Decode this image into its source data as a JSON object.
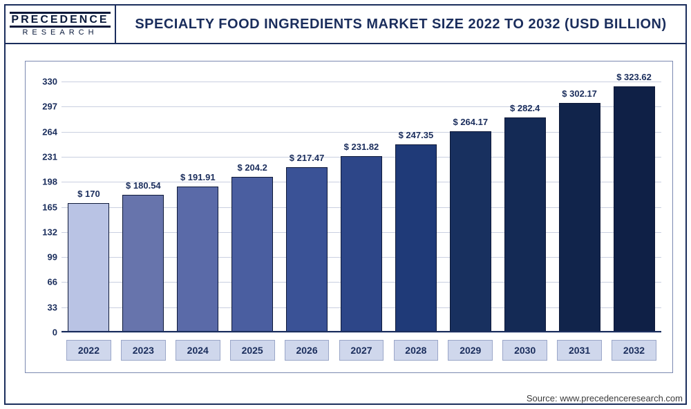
{
  "logo": {
    "line1": "PRECEDENCE",
    "line2": "RESEARCH"
  },
  "title": "SPECIALTY FOOD INGREDIENTS MARKET SIZE 2022 TO 2032 (USD BILLION)",
  "source": "Source: www.precedenceresearch.com",
  "chart": {
    "type": "bar",
    "categories": [
      "2022",
      "2023",
      "2024",
      "2025",
      "2026",
      "2027",
      "2028",
      "2029",
      "2030",
      "2031",
      "2032"
    ],
    "values": [
      170,
      180.54,
      191.91,
      204.2,
      217.47,
      231.82,
      247.35,
      264.17,
      282.4,
      302.17,
      323.62
    ],
    "value_labels": [
      "$ 170",
      "$ 180.54",
      "$ 191.91",
      "$ 204.2",
      "$ 217.47",
      "$ 231.82",
      "$ 247.35",
      "$ 264.17",
      "$ 282.4",
      "$ 302.17",
      "$ 323.62"
    ],
    "bar_colors": [
      "#b9c3e4",
      "#6774ac",
      "#5a6aa8",
      "#4a5ea0",
      "#3a5296",
      "#2d4688",
      "#1f3a78",
      "#18305f",
      "#142a55",
      "#11244b",
      "#0f2046"
    ],
    "y_ticks": [
      0,
      33,
      66,
      99,
      132,
      165,
      198,
      231,
      264,
      297,
      330
    ],
    "ylim": [
      0,
      340
    ],
    "grid_color": "#c9cfe0",
    "axis_text_color": "#1a2d5c",
    "bar_border_color": "#0d1838",
    "background_color": "#ffffff",
    "label_fontsize": 13,
    "title_fontsize": 20,
    "bar_width": 0.76
  }
}
